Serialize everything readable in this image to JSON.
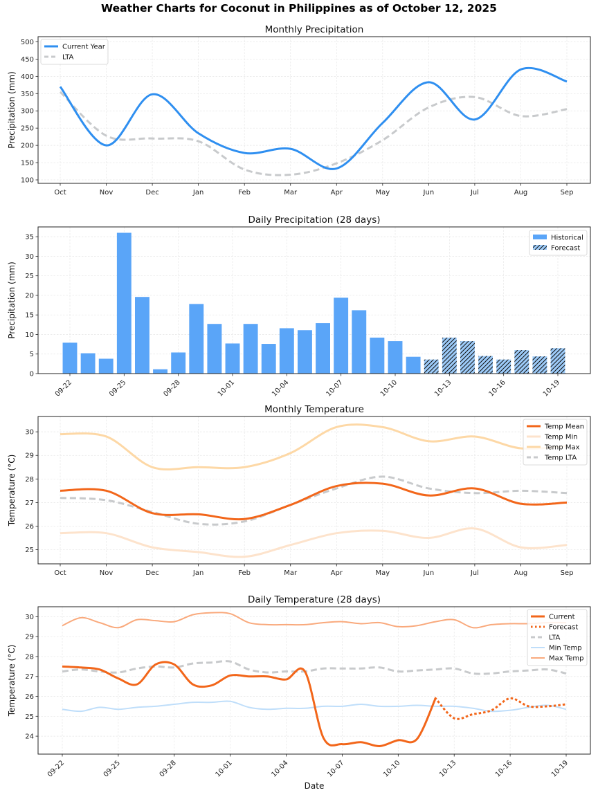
{
  "suptitle": "Weather Charts for Coconut in Philippines as of October 12, 2025",
  "colors": {
    "current_precip": "#2f8ff0",
    "lta": "#c8cacc",
    "bar_hist": "#5aa5f8",
    "bar_forecast": "#9ccaf8",
    "temp_mean": "#f2661a",
    "temp_min": "#fde3cc",
    "temp_max": "#fdd8a6",
    "daily_min": "#bfdefa",
    "daily_max": "#f9a97c"
  },
  "chart_data": [
    {
      "id": "monthly_precip",
      "type": "line",
      "title": "Monthly Precipitation",
      "xlabel": "",
      "ylabel": "Precipitation (mm)",
      "categories": [
        "Oct",
        "Nov",
        "Dec",
        "Jan",
        "Feb",
        "Mar",
        "Apr",
        "May",
        "Jun",
        "Jul",
        "Aug",
        "Sep"
      ],
      "yticks": [
        100,
        150,
        200,
        250,
        300,
        350,
        400,
        450,
        500
      ],
      "ylim": [
        90,
        515
      ],
      "grid": true,
      "legend": "top-left",
      "series": [
        {
          "name": "Current Year",
          "style": "solid",
          "values": [
            370,
            200,
            348,
            235,
            178,
            190,
            133,
            265,
            383,
            275,
            420,
            385
          ]
        },
        {
          "name": "LTA",
          "style": "dashed",
          "values": [
            355,
            228,
            220,
            212,
            130,
            115,
            148,
            215,
            310,
            340,
            285,
            305
          ]
        }
      ]
    },
    {
      "id": "daily_precip",
      "type": "bar",
      "title": "Daily Precipitation (28 days)",
      "xlabel": "",
      "ylabel": "Precipitation (mm)",
      "categories": [
        "09-22",
        "09-23",
        "09-24",
        "09-25",
        "09-26",
        "09-27",
        "09-28",
        "09-29",
        "09-30",
        "10-01",
        "10-02",
        "10-03",
        "10-04",
        "10-05",
        "10-06",
        "10-07",
        "10-08",
        "10-09",
        "10-10",
        "10-11",
        "10-12",
        "10-13",
        "10-14",
        "10-15",
        "10-16",
        "10-17",
        "10-18",
        "10-19"
      ],
      "xticks": [
        "09-22",
        "09-25",
        "09-28",
        "10-01",
        "10-04",
        "10-07",
        "10-10",
        "10-13",
        "10-16",
        "10-19"
      ],
      "yticks": [
        0,
        5,
        10,
        15,
        20,
        25,
        30,
        35
      ],
      "ylim": [
        0,
        37.5
      ],
      "grid": true,
      "legend": "top-right",
      "series": [
        {
          "name": "Historical",
          "values": [
            7.9,
            5.2,
            3.8,
            36.0,
            19.6,
            1.1,
            5.4,
            17.8,
            12.7,
            7.7,
            12.7,
            7.6,
            11.6,
            11.1,
            12.9,
            19.4,
            16.2,
            9.2,
            8.3,
            4.3,
            null,
            null,
            null,
            null,
            null,
            null,
            null,
            null
          ]
        },
        {
          "name": "Forecast",
          "values": [
            null,
            null,
            null,
            null,
            null,
            null,
            null,
            null,
            null,
            null,
            null,
            null,
            null,
            null,
            null,
            null,
            null,
            null,
            null,
            null,
            3.6,
            9.2,
            8.3,
            4.5,
            3.6,
            6.0,
            4.4,
            6.5
          ]
        }
      ]
    },
    {
      "id": "monthly_temp",
      "type": "line",
      "title": "Monthly Temperature",
      "xlabel": "",
      "ylabel": "Temperature (°C)",
      "categories": [
        "Oct",
        "Nov",
        "Dec",
        "Jan",
        "Feb",
        "Mar",
        "Apr",
        "May",
        "Jun",
        "Jul",
        "Aug",
        "Sep"
      ],
      "yticks": [
        25,
        26,
        27,
        28,
        29,
        30
      ],
      "ylim": [
        24.4,
        30.65
      ],
      "grid": true,
      "legend": "top-right",
      "series": [
        {
          "name": "Temp Mean",
          "style": "solid",
          "values": [
            27.5,
            27.5,
            26.55,
            26.5,
            26.3,
            26.9,
            27.7,
            27.8,
            27.3,
            27.6,
            26.95,
            27.0
          ]
        },
        {
          "name": "Temp Min",
          "style": "solid",
          "values": [
            25.7,
            25.7,
            25.1,
            24.9,
            24.7,
            25.2,
            25.7,
            25.8,
            25.5,
            25.9,
            25.1,
            25.2
          ]
        },
        {
          "name": "Temp Max",
          "style": "solid",
          "values": [
            29.9,
            29.8,
            28.5,
            28.5,
            28.5,
            29.1,
            30.2,
            30.2,
            29.6,
            29.8,
            29.3,
            29.4
          ]
        },
        {
          "name": "Temp LTA",
          "style": "dashed",
          "values": [
            27.2,
            27.1,
            26.6,
            26.1,
            26.2,
            26.9,
            27.6,
            28.1,
            27.6,
            27.4,
            27.5,
            27.4
          ]
        }
      ]
    },
    {
      "id": "daily_temp",
      "type": "line",
      "title": "Daily Temperature (28 days)",
      "xlabel": "Date",
      "ylabel": "Temperature (°C)",
      "categories": [
        "09-22",
        "09-23",
        "09-24",
        "09-25",
        "09-26",
        "09-27",
        "09-28",
        "09-29",
        "09-30",
        "10-01",
        "10-02",
        "10-03",
        "10-04",
        "10-05",
        "10-06",
        "10-07",
        "10-08",
        "10-09",
        "10-10",
        "10-11",
        "10-12",
        "10-13",
        "10-14",
        "10-15",
        "10-16",
        "10-17",
        "10-18",
        "10-19"
      ],
      "xticks": [
        "09-22",
        "09-25",
        "09-28",
        "10-01",
        "10-04",
        "10-07",
        "10-10",
        "10-13",
        "10-16",
        "10-19"
      ],
      "yticks": [
        24,
        25,
        26,
        27,
        28,
        29,
        30
      ],
      "ylim": [
        23.1,
        30.5
      ],
      "grid": true,
      "legend": "top-right",
      "series": [
        {
          "name": "Current",
          "style": "solid",
          "values": [
            27.5,
            27.45,
            27.35,
            26.9,
            26.6,
            27.6,
            27.6,
            26.6,
            26.55,
            27.05,
            27.0,
            27.0,
            26.85,
            27.25,
            23.9,
            23.6,
            23.7,
            23.5,
            23.8,
            23.85,
            25.9,
            null,
            null,
            null,
            null,
            null,
            null,
            null
          ]
        },
        {
          "name": "Forecast",
          "style": "dotted",
          "values": [
            null,
            null,
            null,
            null,
            null,
            null,
            null,
            null,
            null,
            null,
            null,
            null,
            null,
            null,
            null,
            null,
            null,
            null,
            null,
            null,
            25.9,
            24.9,
            25.1,
            25.3,
            25.9,
            25.5,
            25.5,
            25.6
          ]
        },
        {
          "name": "LTA",
          "style": "dashed",
          "values": [
            27.25,
            27.35,
            27.25,
            27.2,
            27.4,
            27.5,
            27.45,
            27.65,
            27.7,
            27.75,
            27.35,
            27.2,
            27.25,
            27.25,
            27.4,
            27.4,
            27.4,
            27.45,
            27.25,
            27.3,
            27.35,
            27.4,
            27.15,
            27.15,
            27.25,
            27.3,
            27.35,
            27.15
          ]
        },
        {
          "name": "Min Temp",
          "style": "solid",
          "values": [
            25.35,
            25.25,
            25.45,
            25.35,
            25.45,
            25.5,
            25.6,
            25.7,
            25.7,
            25.75,
            25.45,
            25.35,
            25.4,
            25.4,
            25.5,
            25.5,
            25.6,
            25.5,
            25.5,
            25.55,
            25.5,
            25.5,
            25.4,
            25.25,
            25.3,
            25.45,
            25.55,
            25.35
          ]
        },
        {
          "name": "Max Temp",
          "style": "solid",
          "values": [
            29.55,
            29.95,
            29.7,
            29.45,
            29.85,
            29.8,
            29.75,
            30.1,
            30.2,
            30.15,
            29.7,
            29.6,
            29.6,
            29.6,
            29.7,
            29.75,
            29.65,
            29.7,
            29.5,
            29.55,
            29.75,
            29.85,
            29.45,
            29.6,
            29.65,
            29.65,
            29.7,
            29.7
          ]
        }
      ]
    }
  ]
}
